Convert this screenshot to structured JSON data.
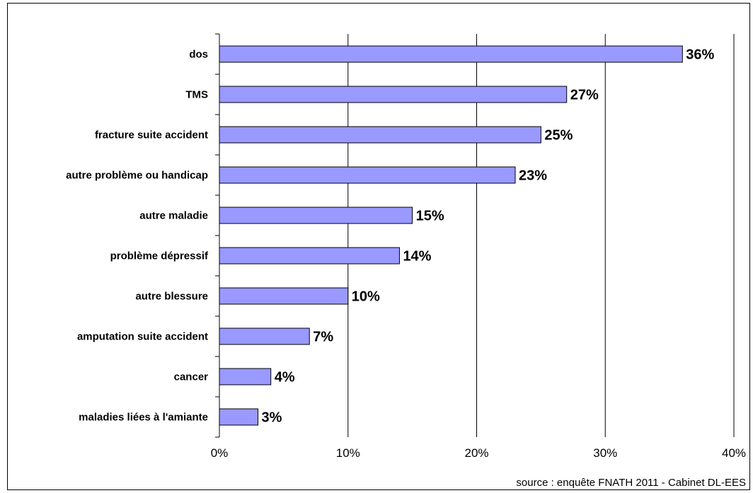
{
  "chart_data": {
    "type": "bar",
    "orientation": "horizontal",
    "categories": [
      "dos",
      "TMS",
      "fracture suite accident",
      "autre problème ou handicap",
      "autre maladie",
      "problème dépressif",
      "autre blessure",
      "amputation suite accident",
      "cancer",
      "maladies liées à l'amiante"
    ],
    "values": [
      36,
      27,
      25,
      23,
      15,
      14,
      10,
      7,
      4,
      3
    ],
    "value_labels": [
      "36%",
      "27%",
      "25%",
      "23%",
      "15%",
      "14%",
      "10%",
      "7%",
      "4%",
      "3%"
    ],
    "x_ticks": [
      0,
      10,
      20,
      30,
      40
    ],
    "x_tick_labels": [
      "0%",
      "10%",
      "20%",
      "30%",
      "40%"
    ],
    "xlim": [
      0,
      40
    ],
    "title": "",
    "xlabel": "",
    "ylabel": "",
    "grid": "vertical",
    "legend": "none",
    "bar_color": "#9999FF",
    "source": "source : enquête FNATH 2011 - Cabinet DL-EES"
  }
}
